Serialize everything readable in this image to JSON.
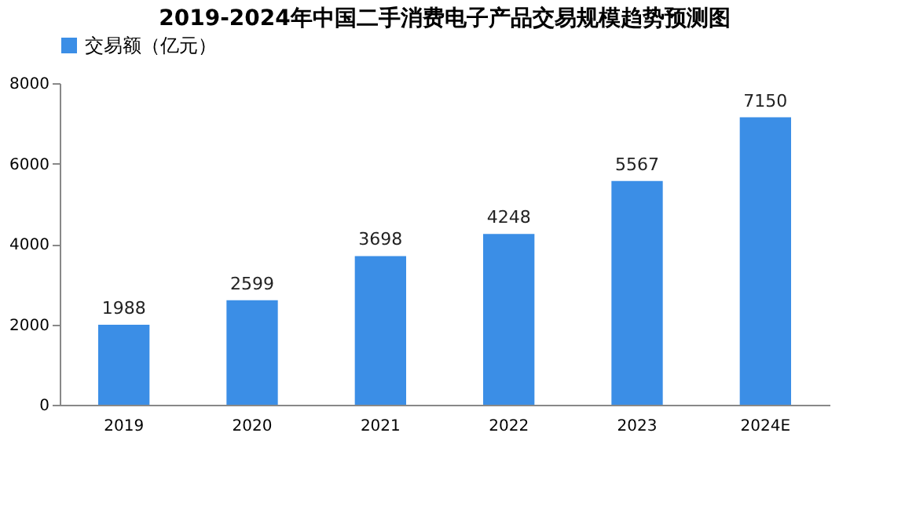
{
  "chart_data": {
    "type": "bar",
    "title": "2019-2024年中国二手消费电子产品交易规模趋势预测图",
    "categories": [
      "2019",
      "2020",
      "2021",
      "2022",
      "2023",
      "2024E"
    ],
    "series": [
      {
        "name": "交易额（亿元）",
        "color": "#3b8ee6",
        "values": [
          1988,
          2599,
          3698,
          4248,
          5567,
          7150
        ]
      }
    ],
    "ylim": [
      0,
      8000
    ],
    "yticks": [
      0,
      2000,
      4000,
      6000,
      8000
    ],
    "grid": false,
    "legend": "top",
    "data_labels": true
  }
}
